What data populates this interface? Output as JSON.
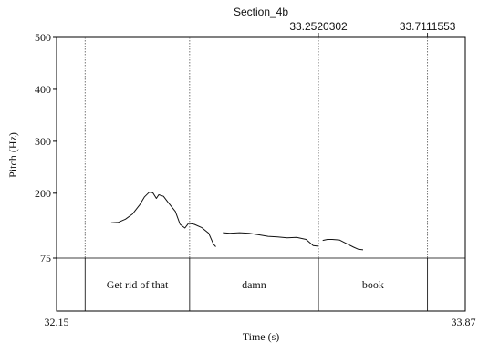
{
  "chart_data": {
    "type": "line",
    "title": "Section_4b",
    "xlabel": "Time (s)",
    "ylabel": "Pitch (Hz)",
    "xlim": [
      32.15,
      33.87
    ],
    "ylim": [
      75,
      500
    ],
    "x_tick_labels": [
      "32.15",
      "33.87"
    ],
    "y_ticks": [
      {
        "value": 500,
        "label": "500"
      },
      {
        "value": 400,
        "label": "400"
      },
      {
        "value": 300,
        "label": "300"
      },
      {
        "value": 200,
        "label": "200"
      },
      {
        "value": 75,
        "label": "75"
      }
    ],
    "boundaries": [
      {
        "time": 32.27,
        "label": ""
      },
      {
        "time": 32.71,
        "label": ""
      },
      {
        "time": 33.2520302,
        "label": "33.2520302"
      },
      {
        "time": 33.7111553,
        "label": "33.7111553"
      }
    ],
    "words": [
      {
        "label": "Get rid of that",
        "start": 32.27,
        "end": 32.71
      },
      {
        "label": "damn",
        "start": 32.71,
        "end": 33.2520302
      },
      {
        "label": "book",
        "start": 33.2520302,
        "end": 33.7111553
      }
    ],
    "series": [
      {
        "points": [
          [
            32.38,
            143
          ],
          [
            32.41,
            144
          ],
          [
            32.44,
            150
          ],
          [
            32.47,
            160
          ],
          [
            32.5,
            178
          ],
          [
            32.52,
            193
          ],
          [
            32.54,
            202
          ],
          [
            32.555,
            201
          ],
          [
            32.57,
            190
          ],
          [
            32.58,
            197
          ],
          [
            32.6,
            194
          ],
          [
            32.62,
            182
          ],
          [
            32.65,
            165
          ],
          [
            32.67,
            140
          ],
          [
            32.69,
            133
          ],
          [
            32.705,
            142
          ],
          [
            32.73,
            140
          ],
          [
            32.76,
            134
          ],
          [
            32.79,
            123
          ],
          [
            32.81,
            102
          ],
          [
            32.82,
            97
          ]
        ]
      },
      {
        "points": [
          [
            32.85,
            124
          ],
          [
            32.88,
            123
          ],
          [
            32.92,
            124
          ],
          [
            32.96,
            123
          ],
          [
            33.0,
            120
          ],
          [
            33.04,
            117
          ],
          [
            33.08,
            116
          ],
          [
            33.12,
            114
          ],
          [
            33.16,
            115
          ],
          [
            33.2,
            111
          ],
          [
            33.23,
            99
          ],
          [
            33.25,
            98
          ]
        ]
      },
      {
        "points": [
          [
            33.27,
            109
          ],
          [
            33.29,
            111
          ],
          [
            33.31,
            111
          ],
          [
            33.34,
            110
          ],
          [
            33.37,
            103
          ],
          [
            33.4,
            96
          ],
          [
            33.42,
            92
          ],
          [
            33.44,
            91
          ]
        ]
      }
    ]
  }
}
